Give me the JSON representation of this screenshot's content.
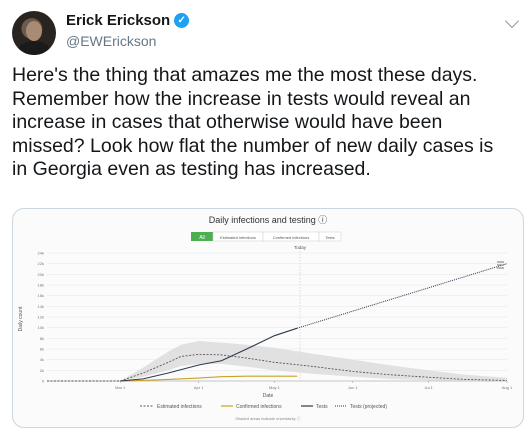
{
  "tweet": {
    "author_name": "Erick Erickson",
    "handle": "@EWErickson",
    "verified_icon": "verified-badge-icon",
    "lines": [
      "Here's the thing that amazes me the most these days.",
      "Remember how the increase in tests would reveal an",
      "increase in cases that otherwise would have been",
      "missed?  Look how flat the number of new daily cases is",
      "in Georgia even as testing has increased."
    ]
  },
  "chart": {
    "title": "Daily infections and testing ⓘ",
    "toggles": [
      "All",
      "Estimated infections",
      "Confirmed infections",
      "Tests"
    ],
    "today_label": "Today",
    "ylabel": "Daily count",
    "xlabel": "Date",
    "legend": [
      "Estimated infections",
      "Confirmed infections",
      "Tests",
      "Tests (projected)"
    ],
    "footnote": "Shaded areas indicate uncertainty ⓘ",
    "menu_icon": "hamburger-menu-icon",
    "colors": {
      "accent": "#4caf50",
      "tests": "#2d3a4d",
      "estimated": "#555555",
      "confirmed": "#c9a227",
      "band": "#dedede"
    }
  },
  "chart_data": {
    "type": "line",
    "x_ticks": [
      "Mar 1",
      "Apr 1",
      "May 1",
      "Jun 1",
      "Jul 1",
      "Aug 1"
    ],
    "y_ticks": [
      "0",
      "2k",
      "4k",
      "6k",
      "8k",
      "10k",
      "12k",
      "14k",
      "16k",
      "18k",
      "20k",
      "22k",
      "24k"
    ],
    "ylim": [
      0,
      24000
    ],
    "series": [
      {
        "name": "Estimated infections",
        "style": "dashed",
        "x": [
          "Feb 1",
          "Mar 1",
          "Mar 10",
          "Mar 20",
          "Mar 25",
          "Apr 1",
          "Apr 10",
          "Apr 20",
          "May 1",
          "May 15",
          "Jun 1",
          "Jun 15",
          "Jul 1",
          "Jul 15",
          "Aug 1"
        ],
        "values": [
          0,
          0,
          1500,
          3500,
          4600,
          5000,
          4900,
          4300,
          3500,
          2800,
          1800,
          1200,
          700,
          300,
          100
        ]
      },
      {
        "name": "Estimated infections uncertainty (upper)",
        "style": "band",
        "x": [
          "Feb 1",
          "Mar 1",
          "Mar 10",
          "Mar 20",
          "Mar 25",
          "Apr 1",
          "Apr 10",
          "Apr 20",
          "May 1",
          "May 15",
          "Jun 1",
          "Jun 15",
          "Jul 1",
          "Jul 15",
          "Aug 1"
        ],
        "values": [
          0,
          0,
          2500,
          5500,
          6800,
          7500,
          7200,
          6800,
          6200,
          5200,
          4000,
          3000,
          2000,
          1200,
          600
        ]
      },
      {
        "name": "Estimated infections uncertainty (lower)",
        "style": "band",
        "x": [
          "Feb 1",
          "Mar 1",
          "Mar 10",
          "Mar 20",
          "Mar 25",
          "Apr 1",
          "Apr 10",
          "Apr 20",
          "May 1",
          "May 15",
          "Jun 1",
          "Jun 15",
          "Jul 1",
          "Jul 15",
          "Aug 1"
        ],
        "values": [
          0,
          0,
          800,
          2000,
          2800,
          3200,
          3200,
          2700,
          2000,
          1400,
          800,
          400,
          150,
          50,
          0
        ]
      },
      {
        "name": "Confirmed infections",
        "style": "solid",
        "x": [
          "Mar 1",
          "Mar 10",
          "Mar 20",
          "Apr 1",
          "Apr 10",
          "Apr 20",
          "May 1",
          "May 10"
        ],
        "values": [
          0,
          100,
          300,
          550,
          800,
          900,
          900,
          900
        ]
      },
      {
        "name": "Tests",
        "style": "solid",
        "x": [
          "Mar 1",
          "Mar 10",
          "Mar 20",
          "Apr 1",
          "Apr 10",
          "Apr 20",
          "May 1",
          "May 10"
        ],
        "values": [
          0,
          400,
          1500,
          3000,
          3800,
          6000,
          8500,
          9900
        ]
      },
      {
        "name": "Tests (projected)",
        "style": "dotted",
        "x": [
          "May 10",
          "Aug 1"
        ],
        "values": [
          9900,
          22000
        ]
      }
    ]
  }
}
